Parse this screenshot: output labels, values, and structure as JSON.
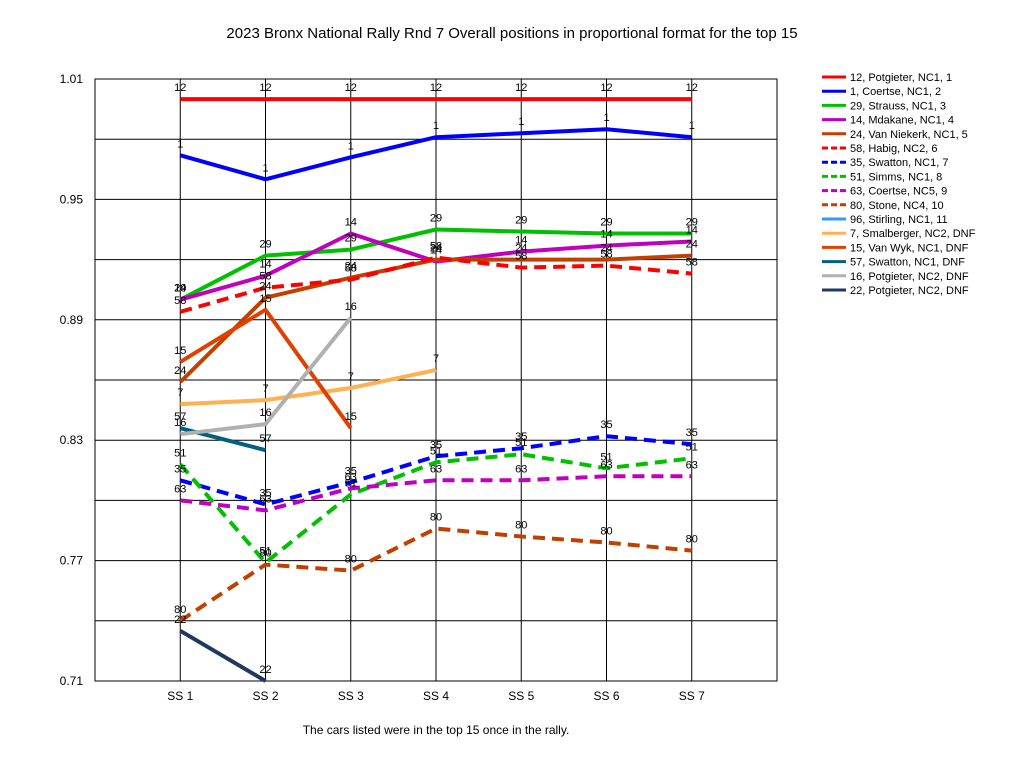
{
  "chart_data": {
    "type": "line",
    "title": "2023 Bronx National Rally Rnd 7  Overall positions in proportional format for the top 15",
    "footnote": "The cars listed were in the top 15 once in the rally.",
    "xlabel": "",
    "ylabel": "",
    "categories": [
      "SS 1",
      "SS 2",
      "SS 3",
      "SS 4",
      "SS 5",
      "SS 6",
      "SS 7"
    ],
    "ylim": [
      0.71,
      1.01
    ],
    "yticks": [
      "0.71",
      "0.77",
      "0.83",
      "0.89",
      "0.95",
      "1.01"
    ],
    "grid": true,
    "legend_position": "right",
    "series": [
      {
        "name": "12, Potgieter, NC1, 1",
        "label": "12",
        "color": "#ff0000",
        "dash": false,
        "values": [
          1.0,
          1.0,
          1.0,
          1.0,
          1.0,
          1.0,
          1.0
        ]
      },
      {
        "name": "1, Coertse, NC1, 2",
        "label": "1",
        "color": "#0000ff",
        "dash": false,
        "values": [
          0.972,
          0.96,
          0.971,
          0.981,
          0.983,
          0.985,
          0.981
        ]
      },
      {
        "name": "29, Strauss, NC1, 3",
        "label": "29",
        "color": "#00c000",
        "dash": false,
        "values": [
          0.9,
          0.922,
          0.925,
          0.935,
          0.934,
          0.933,
          0.933
        ]
      },
      {
        "name": "14, Mdakane, NC1, 4",
        "label": "14",
        "color": "#c000c0",
        "dash": false,
        "values": [
          0.9,
          0.912,
          0.933,
          0.919,
          0.924,
          0.927,
          0.929
        ]
      },
      {
        "name": "24, Van Niekerk, NC1, 5",
        "label": "24",
        "color": "#c04000",
        "dash": false,
        "values": [
          0.859,
          0.901,
          0.911,
          0.92,
          0.92,
          0.92,
          0.922
        ]
      },
      {
        "name": "58, Habig, NC2, 6",
        "label": "58",
        "color": "#ff0000",
        "dash": true,
        "values": [
          0.894,
          0.906,
          0.91,
          0.921,
          0.916,
          0.917,
          0.913
        ]
      },
      {
        "name": "35, Swatton, NC1, 7",
        "label": "35",
        "color": "#0000ff",
        "dash": true,
        "values": [
          0.81,
          0.798,
          0.809,
          0.822,
          0.826,
          0.832,
          0.828
        ]
      },
      {
        "name": "51, Simms, NC1, 8",
        "label": "51",
        "color": "#00c000",
        "dash": true,
        "values": [
          0.818,
          0.769,
          0.803,
          0.819,
          0.823,
          0.816,
          0.821
        ]
      },
      {
        "name": "63, Coertse, NC5, 9",
        "label": "63",
        "color": "#c000c0",
        "dash": true,
        "values": [
          0.8,
          0.795,
          0.806,
          0.81,
          0.81,
          0.812,
          0.812
        ]
      },
      {
        "name": "80, Stone, NC4, 10",
        "label": "80",
        "color": "#c04000",
        "dash": true,
        "values": [
          0.74,
          0.768,
          0.765,
          0.786,
          0.782,
          0.779,
          0.775
        ]
      },
      {
        "name": "96, Stirling, NC1, 11",
        "label": "96",
        "color": "#3399ff",
        "dash": false,
        "values": [
          null,
          null,
          null,
          null,
          null,
          null,
          null
        ]
      },
      {
        "name": "7, Smalberger, NC2,  DNF",
        "label": "7",
        "color": "#ffb050",
        "dash": false,
        "values": [
          0.848,
          0.85,
          0.856,
          0.865,
          null,
          null,
          null
        ]
      },
      {
        "name": "15, Van Wyk, NC1,  DNF",
        "label": "15",
        "color": "#e04000",
        "dash": false,
        "values": [
          0.869,
          0.895,
          0.836,
          null,
          null,
          null,
          null
        ]
      },
      {
        "name": "57, Swatton, NC1,  DNF",
        "label": "57",
        "color": "#006080",
        "dash": false,
        "values": [
          0.836,
          0.825,
          null,
          null,
          null,
          null,
          null
        ]
      },
      {
        "name": "16, Potgieter, NC2,  DNF",
        "label": "16",
        "color": "#b0b0b0",
        "dash": false,
        "values": [
          0.833,
          0.838,
          0.891,
          null,
          null,
          null,
          null
        ]
      },
      {
        "name": "22, Potgieter, NC2,  DNF",
        "label": "22",
        "color": "#203860",
        "dash": false,
        "values": [
          0.735,
          0.71,
          null,
          null,
          null,
          null,
          null
        ]
      }
    ]
  }
}
